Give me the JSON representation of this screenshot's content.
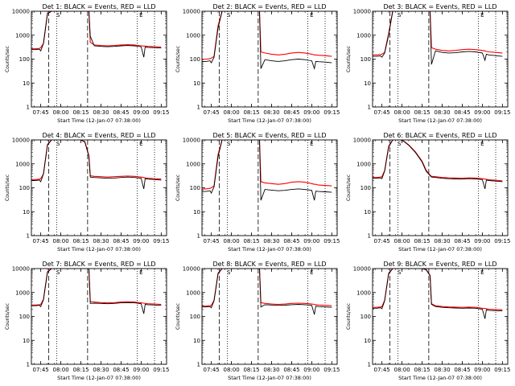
{
  "figure": {
    "x_title": "Start Time (12-Jan-07 07:38:00)",
    "y_title": "Counts/sec",
    "x_ticks": [
      "07:45",
      "08:00",
      "08:15",
      "08:30",
      "08:45",
      "09:00",
      "09:15"
    ],
    "y_ticks": [
      "1",
      "10",
      "100",
      "1000",
      "10000"
    ],
    "markers": [
      "S",
      "E"
    ]
  },
  "colors": {
    "events": "#000000",
    "lld": "#ff0000",
    "axes": "#000000"
  },
  "chart_data": [
    {
      "type": "line",
      "title": "Det 1: BLACK = Events, RED = LLD",
      "y_log": true,
      "ylim": [
        1,
        10000
      ],
      "x": [
        "07:38",
        "07:41",
        "07:44",
        "07:45",
        "07:47",
        "07:50",
        "07:53",
        "07:56",
        "07:59",
        "08:01",
        "08:05",
        "08:10",
        "08:15",
        "08:18",
        "08:21",
        "08:22",
        "08:25",
        "08:30",
        "08:35",
        "08:40",
        "08:45",
        "08:50",
        "08:55",
        "09:00",
        "09:02",
        "09:03",
        "09:05",
        "09:10",
        "09:15"
      ],
      "series": [
        {
          "name": "Events",
          "values": [
            250,
            250,
            260,
            220,
            450,
            8000,
            10000,
            10000,
            10000,
            10000,
            10000,
            10000,
            10000,
            10000,
            10000,
            900,
            360,
            340,
            330,
            340,
            360,
            370,
            360,
            330,
            120,
            320,
            310,
            300,
            290
          ]
        },
        {
          "name": "LLD",
          "values": [
            270,
            270,
            280,
            300,
            450,
            8000,
            10000,
            10000,
            10000,
            10000,
            10000,
            10000,
            10000,
            10000,
            10000,
            500,
            390,
            370,
            360,
            370,
            390,
            400,
            390,
            360,
            350,
            350,
            340,
            330,
            320
          ]
        }
      ]
    },
    {
      "type": "line",
      "title": "Det 2: BLACK = Events, RED = LLD",
      "y_log": true,
      "ylim": [
        1,
        10000
      ],
      "x": [
        "07:38",
        "07:41",
        "07:44",
        "07:45",
        "07:47",
        "07:50",
        "07:53",
        "07:56",
        "07:59",
        "08:01",
        "08:05",
        "08:10",
        "08:15",
        "08:18",
        "08:21",
        "08:22",
        "08:25",
        "08:30",
        "08:35",
        "08:40",
        "08:45",
        "08:50",
        "08:55",
        "09:00",
        "09:02",
        "09:03",
        "09:05",
        "09:10",
        "09:15"
      ],
      "series": [
        {
          "name": "Events",
          "values": [
            80,
            80,
            85,
            70,
            120,
            2000,
            10000,
            10000,
            10000,
            10000,
            10000,
            10000,
            10000,
            10000,
            10000,
            40,
            95,
            85,
            80,
            85,
            95,
            100,
            95,
            85,
            40,
            80,
            78,
            75,
            70
          ]
        },
        {
          "name": "LLD",
          "values": [
            100,
            100,
            105,
            110,
            130,
            2500,
            10000,
            10000,
            10000,
            10000,
            10000,
            10000,
            10000,
            10000,
            10000,
            200,
            180,
            160,
            150,
            160,
            180,
            190,
            180,
            160,
            150,
            150,
            145,
            140,
            130
          ]
        }
      ]
    },
    {
      "type": "line",
      "title": "Det 3: BLACK = Events, RED = LLD",
      "y_log": true,
      "ylim": [
        1,
        10000
      ],
      "x": [
        "07:38",
        "07:41",
        "07:44",
        "07:45",
        "07:47",
        "07:50",
        "07:53",
        "07:56",
        "07:59",
        "08:01",
        "08:05",
        "08:10",
        "08:15",
        "08:18",
        "08:21",
        "08:22",
        "08:25",
        "08:30",
        "08:35",
        "08:40",
        "08:45",
        "08:50",
        "08:55",
        "09:00",
        "09:02",
        "09:03",
        "09:05",
        "09:10",
        "09:15"
      ],
      "series": [
        {
          "name": "Events",
          "values": [
            130,
            130,
            135,
            120,
            180,
            1000,
            10000,
            10000,
            10000,
            10000,
            10000,
            10000,
            10000,
            10000,
            10000,
            60,
            220,
            190,
            180,
            185,
            200,
            210,
            200,
            180,
            90,
            160,
            150,
            140,
            130
          ]
        },
        {
          "name": "LLD",
          "values": [
            150,
            150,
            155,
            160,
            190,
            1200,
            10000,
            10000,
            10000,
            10000,
            10000,
            10000,
            10000,
            10000,
            10000,
            300,
            260,
            230,
            220,
            230,
            250,
            260,
            250,
            230,
            220,
            210,
            200,
            190,
            180
          ]
        }
      ]
    },
    {
      "type": "line",
      "title": "Det 4: BLACK = Events, RED = LLD",
      "y_log": true,
      "ylim": [
        1,
        10000
      ],
      "x": [
        "07:38",
        "07:41",
        "07:44",
        "07:45",
        "07:47",
        "07:50",
        "07:53",
        "07:56",
        "07:59",
        "08:01",
        "08:05",
        "08:10",
        "08:15",
        "08:18",
        "08:21",
        "08:22",
        "08:25",
        "08:30",
        "08:35",
        "08:40",
        "08:45",
        "08:50",
        "08:55",
        "09:00",
        "09:02",
        "09:03",
        "09:05",
        "09:10",
        "09:15"
      ],
      "series": [
        {
          "name": "Events",
          "values": [
            200,
            200,
            210,
            180,
            380,
            6000,
            10000,
            10000,
            10000,
            10000,
            10000,
            10000,
            10000,
            8000,
            2000,
            280,
            270,
            260,
            250,
            255,
            270,
            280,
            270,
            250,
            90,
            240,
            230,
            220,
            210
          ]
        },
        {
          "name": "LLD",
          "values": [
            220,
            220,
            230,
            240,
            380,
            6500,
            10000,
            10000,
            10000,
            10000,
            10000,
            10000,
            10000,
            8500,
            2200,
            320,
            300,
            290,
            280,
            290,
            300,
            310,
            300,
            280,
            270,
            260,
            250,
            240,
            230
          ]
        }
      ]
    },
    {
      "type": "line",
      "title": "Det 5: BLACK = Events, RED = LLD",
      "y_log": true,
      "ylim": [
        1,
        10000
      ],
      "x": [
        "07:38",
        "07:41",
        "07:44",
        "07:45",
        "07:47",
        "07:50",
        "07:53",
        "07:56",
        "07:59",
        "08:01",
        "08:05",
        "08:10",
        "08:15",
        "08:18",
        "08:21",
        "08:22",
        "08:25",
        "08:30",
        "08:35",
        "08:40",
        "08:45",
        "08:50",
        "08:55",
        "09:00",
        "09:02",
        "09:03",
        "09:05",
        "09:10",
        "09:15"
      ],
      "series": [
        {
          "name": "Events",
          "values": [
            70,
            70,
            75,
            60,
            110,
            2000,
            10000,
            10000,
            10000,
            10000,
            10000,
            10000,
            10000,
            10000,
            10000,
            30,
            85,
            80,
            75,
            78,
            85,
            90,
            85,
            78,
            30,
            72,
            70,
            68,
            65
          ]
        },
        {
          "name": "LLD",
          "values": [
            90,
            90,
            95,
            100,
            120,
            2500,
            10000,
            10000,
            10000,
            10000,
            10000,
            10000,
            10000,
            10000,
            10000,
            180,
            160,
            150,
            140,
            150,
            170,
            180,
            170,
            150,
            140,
            140,
            130,
            125,
            120
          ]
        }
      ]
    },
    {
      "type": "line",
      "title": "Det 6: BLACK = Events, RED = LLD",
      "y_log": true,
      "ylim": [
        1,
        10000
      ],
      "x": [
        "07:38",
        "07:41",
        "07:44",
        "07:45",
        "07:47",
        "07:50",
        "07:53",
        "07:56",
        "07:59",
        "08:01",
        "08:05",
        "08:10",
        "08:15",
        "08:18",
        "08:21",
        "08:22",
        "08:25",
        "08:30",
        "08:35",
        "08:40",
        "08:45",
        "08:50",
        "08:55",
        "09:00",
        "09:02",
        "09:03",
        "09:05",
        "09:10",
        "09:15"
      ],
      "series": [
        {
          "name": "Events",
          "values": [
            250,
            250,
            260,
            240,
            500,
            5000,
            10000,
            10000,
            10000,
            9000,
            6000,
            3000,
            1200,
            500,
            320,
            280,
            270,
            250,
            240,
            235,
            230,
            240,
            235,
            220,
            90,
            210,
            200,
            190,
            180
          ]
        },
        {
          "name": "LLD",
          "values": [
            270,
            270,
            280,
            290,
            520,
            5500,
            10000,
            10000,
            10000,
            9200,
            6200,
            3200,
            1300,
            550,
            340,
            300,
            290,
            270,
            260,
            255,
            250,
            260,
            255,
            240,
            230,
            225,
            215,
            205,
            195
          ]
        }
      ]
    },
    {
      "type": "line",
      "title": "Det 7: BLACK = Events, RED = LLD",
      "y_log": true,
      "ylim": [
        1,
        10000
      ],
      "x": [
        "07:38",
        "07:41",
        "07:44",
        "07:45",
        "07:47",
        "07:50",
        "07:53",
        "07:56",
        "07:59",
        "08:01",
        "08:05",
        "08:10",
        "08:15",
        "08:18",
        "08:21",
        "08:22",
        "08:25",
        "08:30",
        "08:35",
        "08:40",
        "08:45",
        "08:50",
        "08:55",
        "09:00",
        "09:02",
        "09:03",
        "09:05",
        "09:10",
        "09:15"
      ],
      "series": [
        {
          "name": "Events",
          "values": [
            280,
            280,
            290,
            260,
            500,
            7000,
            10000,
            10000,
            10000,
            10000,
            10000,
            10000,
            10000,
            10000,
            10000,
            350,
            360,
            350,
            340,
            350,
            370,
            380,
            370,
            340,
            130,
            320,
            310,
            300,
            290
          ]
        },
        {
          "name": "LLD",
          "values": [
            300,
            300,
            310,
            320,
            520,
            7500,
            10000,
            10000,
            10000,
            10000,
            10000,
            10000,
            10000,
            10000,
            10000,
            420,
            400,
            380,
            370,
            380,
            400,
            410,
            400,
            370,
            360,
            350,
            340,
            330,
            320
          ]
        }
      ]
    },
    {
      "type": "line",
      "title": "Det 8: BLACK = Events, RED = LLD",
      "y_log": true,
      "ylim": [
        1,
        10000
      ],
      "x": [
        "07:38",
        "07:41",
        "07:44",
        "07:45",
        "07:47",
        "07:50",
        "07:53",
        "07:56",
        "07:59",
        "08:01",
        "08:05",
        "08:10",
        "08:15",
        "08:18",
        "08:21",
        "08:22",
        "08:25",
        "08:30",
        "08:35",
        "08:40",
        "08:45",
        "08:50",
        "08:55",
        "09:00",
        "09:02",
        "09:03",
        "09:05",
        "09:10",
        "09:15"
      ],
      "series": [
        {
          "name": "Events",
          "values": [
            250,
            250,
            260,
            230,
            450,
            6000,
            10000,
            10000,
            10000,
            10000,
            10000,
            10000,
            10000,
            10000,
            10000,
            250,
            310,
            300,
            290,
            295,
            310,
            320,
            310,
            290,
            120,
            270,
            260,
            250,
            240
          ]
        },
        {
          "name": "LLD",
          "values": [
            270,
            270,
            280,
            290,
            470,
            6500,
            10000,
            10000,
            10000,
            10000,
            10000,
            10000,
            10000,
            10000,
            10000,
            380,
            350,
            330,
            320,
            330,
            350,
            360,
            350,
            330,
            320,
            310,
            300,
            290,
            280
          ]
        }
      ]
    },
    {
      "type": "line",
      "title": "Det 9: BLACK = Events, RED = LLD",
      "y_log": true,
      "ylim": [
        1,
        10000
      ],
      "x": [
        "07:38",
        "07:41",
        "07:44",
        "07:45",
        "07:47",
        "07:50",
        "07:53",
        "07:56",
        "07:59",
        "08:01",
        "08:05",
        "08:10",
        "08:15",
        "08:18",
        "08:21",
        "08:22",
        "08:25",
        "08:30",
        "08:35",
        "08:40",
        "08:45",
        "08:50",
        "08:55",
        "09:00",
        "09:02",
        "09:03",
        "09:05",
        "09:10",
        "09:15"
      ],
      "series": [
        {
          "name": "Events",
          "values": [
            220,
            220,
            230,
            210,
            450,
            6000,
            10000,
            10000,
            10000,
            10000,
            10000,
            10000,
            10000,
            9000,
            5000,
            320,
            260,
            240,
            230,
            225,
            220,
            225,
            220,
            200,
            80,
            190,
            180,
            175,
            170
          ]
        },
        {
          "name": "LLD",
          "values": [
            240,
            240,
            250,
            260,
            470,
            6500,
            10000,
            10000,
            10000,
            10000,
            10000,
            10000,
            10000,
            9300,
            5200,
            340,
            280,
            260,
            250,
            245,
            240,
            245,
            240,
            220,
            215,
            210,
            200,
            195,
            190
          ]
        }
      ]
    }
  ]
}
